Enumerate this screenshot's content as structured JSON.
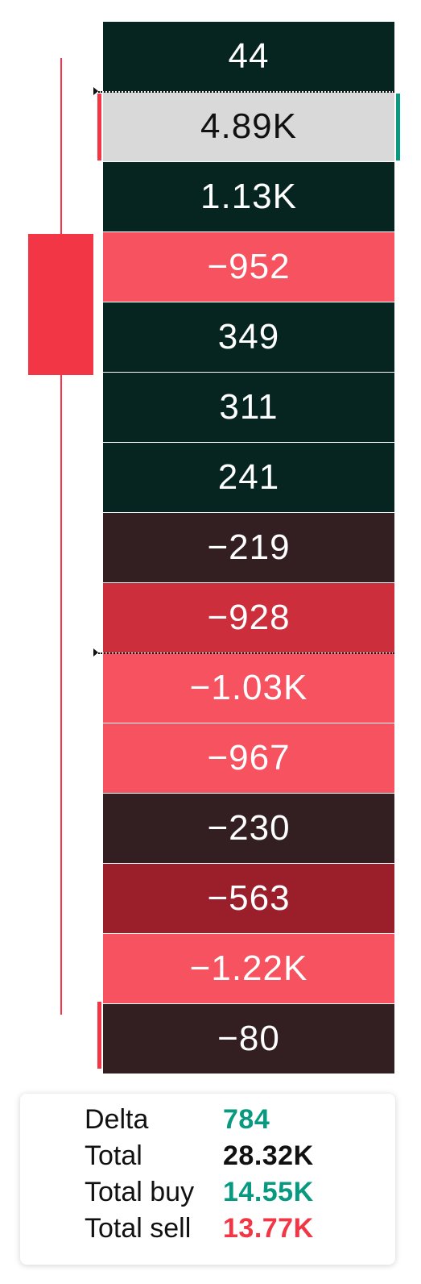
{
  "colors": {
    "dark_green": "#072520",
    "dark_maroon": "#331f21",
    "salmon": "#f7525f",
    "mid_red": "#cc2e3c",
    "deep_red": "#9a1f2b",
    "highlight_gray": "#d9d9d9",
    "bull_green": "#089981",
    "bear_red": "#f23645"
  },
  "ladder": {
    "rows": [
      {
        "value": "44",
        "tone": "dark_green"
      },
      {
        "value": "4.89K",
        "tone": "highlight_gray"
      },
      {
        "value": "1.13K",
        "tone": "dark_green"
      },
      {
        "value": "−952",
        "tone": "salmon"
      },
      {
        "value": "349",
        "tone": "dark_green"
      },
      {
        "value": "311",
        "tone": "dark_green"
      },
      {
        "value": "241",
        "tone": "dark_green"
      },
      {
        "value": "−219",
        "tone": "dark_maroon"
      },
      {
        "value": "−928",
        "tone": "mid_red"
      },
      {
        "value": "−1.03K",
        "tone": "salmon"
      },
      {
        "value": "−967",
        "tone": "salmon"
      },
      {
        "value": "−230",
        "tone": "dark_maroon"
      },
      {
        "value": "−563",
        "tone": "deep_red"
      },
      {
        "value": "−1.22K",
        "tone": "salmon"
      },
      {
        "value": "−80",
        "tone": "dark_maroon"
      }
    ]
  },
  "summary": {
    "delta_label": "Delta",
    "delta_value": "784",
    "total_label": "Total",
    "total_value": "28.32K",
    "buy_label": "Total buy",
    "buy_value": "14.55K",
    "sell_label": "Total sell",
    "sell_value": "13.77K"
  }
}
